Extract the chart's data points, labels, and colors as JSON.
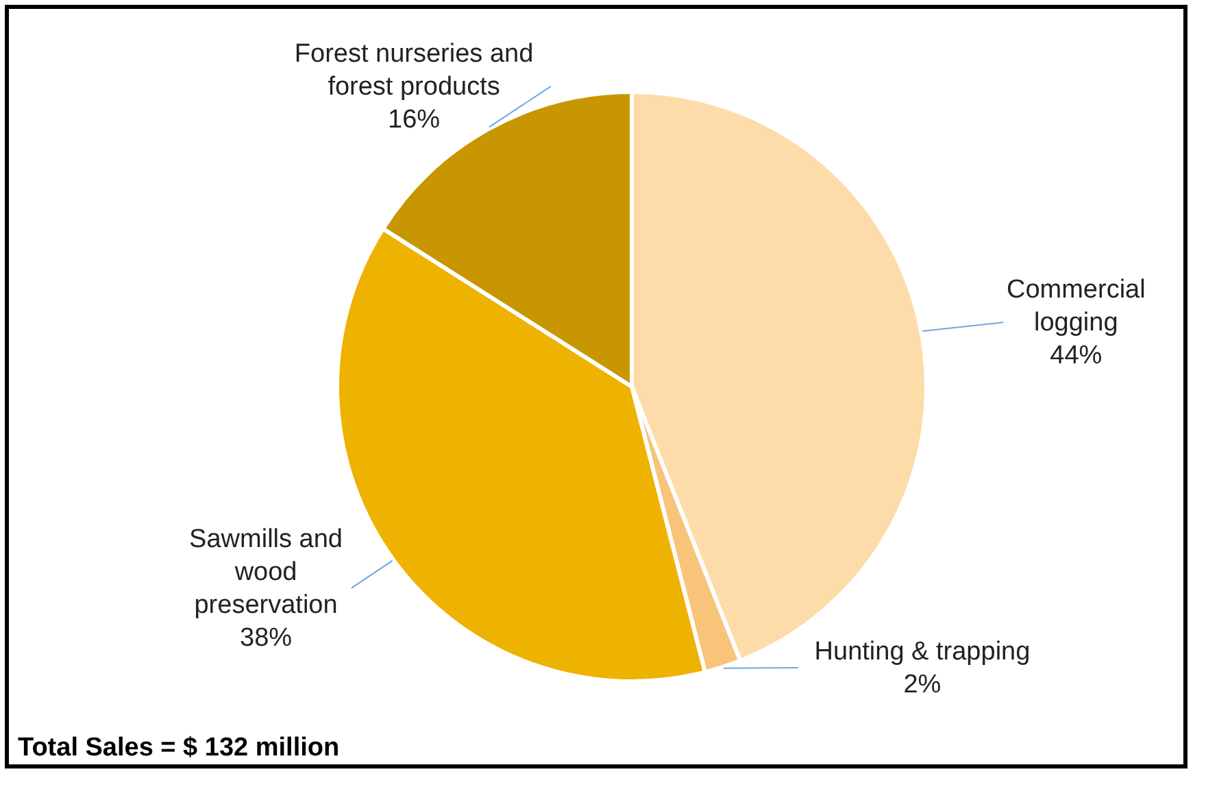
{
  "chart_data": {
    "type": "pie",
    "categories": [
      "Commercial logging",
      "Hunting & trapping",
      "Sawmills and wood preservation",
      "Forest nurseries and forest products"
    ],
    "values": [
      44,
      2,
      38,
      16
    ],
    "value_labels": [
      "44%",
      "2%",
      "38%",
      "16%"
    ],
    "colors": [
      "#fddcaa",
      "#f8c47a",
      "#eeb200",
      "#c89600"
    ],
    "legend": false,
    "annotations": [
      "Total Sales = $ 132 million"
    ]
  }
}
